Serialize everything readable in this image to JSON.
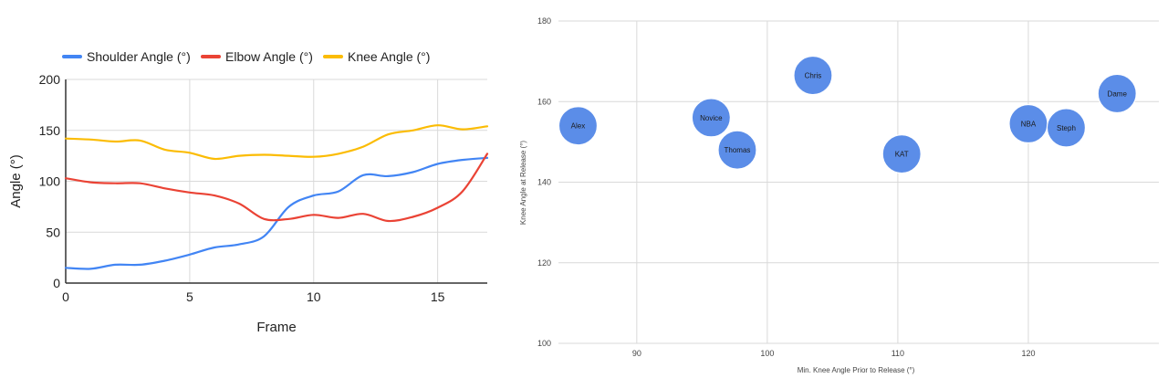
{
  "chart_data": [
    {
      "type": "line",
      "xlabel": "Frame",
      "ylabel": "Angle (°)",
      "xlim": [
        0,
        17
      ],
      "ylim": [
        0,
        200
      ],
      "xticks": [
        0,
        5,
        10,
        15
      ],
      "yticks": [
        0,
        50,
        100,
        150,
        200
      ],
      "grid": true,
      "legend_position": "top",
      "x": [
        0,
        1,
        2,
        3,
        4,
        5,
        6,
        7,
        8,
        9,
        10,
        11,
        12,
        13,
        14,
        15,
        16,
        17
      ],
      "series": [
        {
          "name": "Shoulder Angle (°)",
          "color": "#4285f4",
          "values": [
            15,
            14,
            18,
            18,
            22,
            28,
            35,
            38,
            46,
            75,
            86,
            90,
            106,
            105,
            109,
            117,
            121,
            123
          ]
        },
        {
          "name": "Elbow Angle (°)",
          "color": "#ea4335",
          "values": [
            103,
            99,
            98,
            98,
            93,
            89,
            86,
            78,
            63,
            63,
            67,
            64,
            68,
            61,
            65,
            74,
            90,
            127
          ]
        },
        {
          "name": "Knee Angle (°)",
          "color": "#fbbc04",
          "values": [
            142,
            141,
            139,
            140,
            131,
            128,
            122,
            125,
            126,
            125,
            124,
            127,
            134,
            146,
            150,
            155,
            151,
            154
          ]
        }
      ]
    },
    {
      "type": "scatter",
      "xlabel": "Min. Knee Angle Prior to Release (°)",
      "ylabel": "Knee Angle at Release (°)",
      "xlim": [
        84,
        130
      ],
      "ylim": [
        100,
        180
      ],
      "xticks": [
        90,
        100,
        110,
        120
      ],
      "yticks": [
        100,
        120,
        140,
        160,
        180
      ],
      "grid": true,
      "bubble_color": "#5b8de8",
      "points": [
        {
          "label": "Alex",
          "x": 85.5,
          "y": 154
        },
        {
          "label": "Novice",
          "x": 95.7,
          "y": 156
        },
        {
          "label": "Thomas",
          "x": 97.7,
          "y": 148
        },
        {
          "label": "Chris",
          "x": 103.5,
          "y": 166.5
        },
        {
          "label": "KAT",
          "x": 110.3,
          "y": 147
        },
        {
          "label": "NBA",
          "x": 120.0,
          "y": 154.5
        },
        {
          "label": "Steph",
          "x": 122.9,
          "y": 153.5
        },
        {
          "label": "Dame",
          "x": 126.8,
          "y": 162
        }
      ]
    }
  ]
}
